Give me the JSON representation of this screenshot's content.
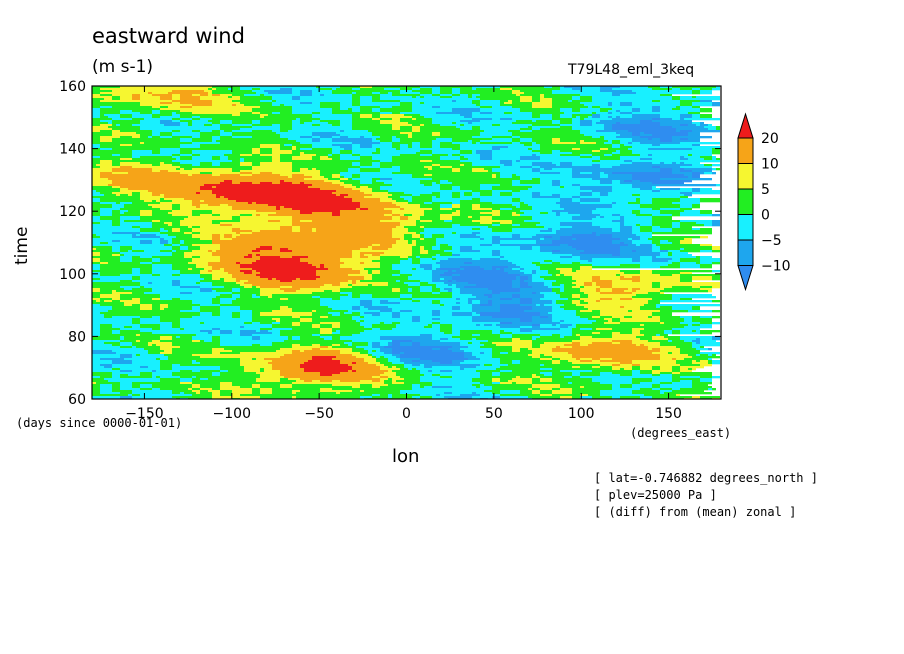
{
  "title": "eastward wind",
  "units": "(m s-1)",
  "experiment": "T79L48_eml_3keq",
  "info_lines": [
    "[ lat=-0.746882 degrees_north ]",
    "[ plev=25000 Pa ]",
    "[ (diff) from (mean) zonal ]"
  ],
  "colors": {
    "lt-10": "#2f8df0",
    "m10_m5": "#1ea6ee",
    "m5_0": "#18f0ff",
    "0_5": "#22ee22",
    "5_10": "#f6f630",
    "10_20": "#f6a418",
    "gt20": "#ee1c1c"
  },
  "chart_data": {
    "type": "heatmap",
    "title": "eastward wind",
    "units": "(m s-1)",
    "xlabel": "lon",
    "xunits": "(degrees_east)",
    "ylabel": "time",
    "yunits": "(days since 0000-01-01)",
    "xlim": [
      -180,
      180
    ],
    "ylim": [
      60,
      160
    ],
    "xticks": [
      -150,
      -100,
      -50,
      0,
      50,
      100,
      150
    ],
    "yticks": [
      60,
      80,
      100,
      120,
      140,
      160
    ],
    "colorbar": {
      "levels": [
        -10,
        -5,
        0,
        5,
        10,
        20
      ],
      "level_labels": [
        "-10",
        "-5",
        "0",
        "5",
        "10",
        "20"
      ],
      "colors": [
        "#2f8df0",
        "#1ea6ee",
        "#18f0ff",
        "#22ee22",
        "#f6f630",
        "#f6a418",
        "#ee1c1c"
      ]
    },
    "features": [
      {
        "lon": -50,
        "time": 70,
        "value": 22
      },
      {
        "lon": -95,
        "time": 127,
        "value": 21
      },
      {
        "lon": -60,
        "time": 101,
        "value": 21
      },
      {
        "lon": -55,
        "time": 123,
        "value": 20
      },
      {
        "lon": -80,
        "time": 108,
        "value": 15
      },
      {
        "lon": -20,
        "time": 115,
        "value": 12
      },
      {
        "lon": 110,
        "time": 75,
        "value": 14
      },
      {
        "lon": 120,
        "time": 95,
        "value": 12
      },
      {
        "lon": -140,
        "time": 157,
        "value": 10
      },
      {
        "lon": -160,
        "time": 130,
        "value": 9
      },
      {
        "lon": 60,
        "time": 90,
        "value": -11
      },
      {
        "lon": 100,
        "time": 110,
        "value": -11
      },
      {
        "lon": 130,
        "time": 130,
        "value": -11
      },
      {
        "lon": 10,
        "time": 75,
        "value": -10
      },
      {
        "lon": 150,
        "time": 148,
        "value": -10
      },
      {
        "lon": 40,
        "time": 100,
        "value": -9
      }
    ]
  }
}
